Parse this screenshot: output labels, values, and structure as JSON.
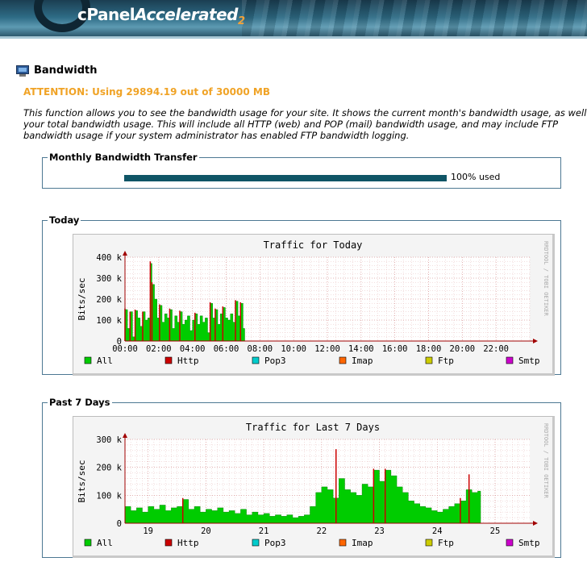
{
  "header": {
    "brand_main": "cPanel",
    "brand_accent": "Accelerated",
    "brand_sub": "2"
  },
  "page": {
    "title": "Bandwidth",
    "attention": "ATTENTION: Using 29894.19 out of 30000 MB",
    "description_lines": [
      "This function allows you to see the bandwidth usage for your site. It shows the current month's bandwidth usage, as well a",
      "your total bandwidth usage. This will include all HTTP (web) and POP (mail) bandwidth usage, and may include FTP",
      "bandwidth usage if your system administrator has enabled FTP bandwidth logging."
    ]
  },
  "monthly": {
    "legend": "Monthly Bandwidth Transfer",
    "percent_used": 100,
    "label": "100% used"
  },
  "legend_items": [
    {
      "label": "All",
      "color": "#00cc00"
    },
    {
      "label": "Http",
      "color": "#cc0000"
    },
    {
      "label": "Pop3",
      "color": "#00cccc"
    },
    {
      "label": "Imap",
      "color": "#ff6600"
    },
    {
      "label": "Ftp",
      "color": "#cccc00"
    },
    {
      "label": "Smtp",
      "color": "#cc00cc"
    }
  ],
  "watermark": "RRDTOOL / TOBI OETIKER",
  "chart_data": [
    {
      "type": "area",
      "section": "Today",
      "title": "Traffic for Today",
      "ylabel": "Bits/sec",
      "ylim": [
        0,
        400000
      ],
      "yticks": [
        0,
        100000,
        200000,
        300000,
        400000
      ],
      "ytick_labels": [
        "0",
        "100 k",
        "200 k",
        "300 k",
        "400 k"
      ],
      "xlim": [
        0,
        24
      ],
      "xticks": [
        0,
        2,
        4,
        6,
        8,
        10,
        12,
        14,
        16,
        18,
        20,
        22
      ],
      "xtick_labels": [
        "00:00",
        "02:00",
        "04:00",
        "06:00",
        "08:00",
        "10:00",
        "12:00",
        "14:00",
        "16:00",
        "18:00",
        "20:00",
        "22:00"
      ],
      "series": [
        {
          "name": "All",
          "values": [
            [
              0.0,
              150000
            ],
            [
              0.15,
              60000
            ],
            [
              0.3,
              140000
            ],
            [
              0.45,
              20000
            ],
            [
              0.6,
              145000
            ],
            [
              0.75,
              110000
            ],
            [
              0.9,
              70000
            ],
            [
              1.05,
              140000
            ],
            [
              1.2,
              100000
            ],
            [
              1.35,
              110000
            ],
            [
              1.5,
              370000
            ],
            [
              1.6,
              270000
            ],
            [
              1.75,
              200000
            ],
            [
              1.9,
              110000
            ],
            [
              2.05,
              170000
            ],
            [
              2.2,
              90000
            ],
            [
              2.35,
              130000
            ],
            [
              2.5,
              110000
            ],
            [
              2.65,
              150000
            ],
            [
              2.8,
              60000
            ],
            [
              2.95,
              120000
            ],
            [
              3.1,
              90000
            ],
            [
              3.25,
              140000
            ],
            [
              3.4,
              80000
            ],
            [
              3.55,
              100000
            ],
            [
              3.7,
              120000
            ],
            [
              3.85,
              50000
            ],
            [
              4.0,
              100000
            ],
            [
              4.15,
              130000
            ],
            [
              4.3,
              80000
            ],
            [
              4.45,
              120000
            ],
            [
              4.6,
              90000
            ],
            [
              4.75,
              110000
            ],
            [
              4.9,
              40000
            ],
            [
              5.05,
              180000
            ],
            [
              5.2,
              110000
            ],
            [
              5.35,
              150000
            ],
            [
              5.5,
              80000
            ],
            [
              5.65,
              130000
            ],
            [
              5.8,
              160000
            ],
            [
              5.95,
              110000
            ],
            [
              6.1,
              100000
            ],
            [
              6.25,
              130000
            ],
            [
              6.4,
              90000
            ],
            [
              6.55,
              190000
            ],
            [
              6.7,
              120000
            ],
            [
              6.85,
              180000
            ],
            [
              7.0,
              60000
            ],
            [
              7.1,
              0
            ]
          ]
        },
        {
          "name": "Http",
          "values": [
            [
              0.0,
              155000
            ],
            [
              0.3,
              140000
            ],
            [
              0.6,
              150000
            ],
            [
              1.05,
              140000
            ],
            [
              1.5,
              380000
            ],
            [
              1.6,
              280000
            ],
            [
              2.05,
              175000
            ],
            [
              2.65,
              155000
            ],
            [
              3.25,
              145000
            ],
            [
              4.15,
              135000
            ],
            [
              5.05,
              185000
            ],
            [
              5.35,
              155000
            ],
            [
              5.8,
              165000
            ],
            [
              6.55,
              195000
            ],
            [
              6.85,
              185000
            ]
          ]
        },
        {
          "name": "Pop3",
          "values": []
        },
        {
          "name": "Imap",
          "values": []
        },
        {
          "name": "Ftp",
          "values": []
        },
        {
          "name": "Smtp",
          "values": []
        }
      ]
    },
    {
      "type": "area",
      "section": "Past 7 Days",
      "title": "Traffic for Last 7 Days",
      "ylabel": "Bits/sec",
      "ylim": [
        0,
        300000
      ],
      "yticks": [
        0,
        100000,
        200000,
        300000
      ],
      "ytick_labels": [
        "0",
        "100 k",
        "200 k",
        "300 k"
      ],
      "xlim": [
        18.6,
        25.6
      ],
      "xticks": [
        19,
        20,
        21,
        22,
        23,
        24,
        25
      ],
      "xtick_labels": [
        "19",
        "20",
        "21",
        "22",
        "23",
        "24",
        "25"
      ],
      "series": [
        {
          "name": "All",
          "values": [
            [
              18.6,
              60000
            ],
            [
              18.7,
              45000
            ],
            [
              18.8,
              55000
            ],
            [
              18.9,
              40000
            ],
            [
              19.0,
              60000
            ],
            [
              19.1,
              50000
            ],
            [
              19.2,
              65000
            ],
            [
              19.3,
              45000
            ],
            [
              19.4,
              55000
            ],
            [
              19.5,
              60000
            ],
            [
              19.6,
              85000
            ],
            [
              19.7,
              50000
            ],
            [
              19.8,
              60000
            ],
            [
              19.9,
              40000
            ],
            [
              20.0,
              50000
            ],
            [
              20.1,
              45000
            ],
            [
              20.2,
              55000
            ],
            [
              20.3,
              40000
            ],
            [
              20.4,
              45000
            ],
            [
              20.5,
              35000
            ],
            [
              20.6,
              50000
            ],
            [
              20.7,
              30000
            ],
            [
              20.8,
              40000
            ],
            [
              20.9,
              30000
            ],
            [
              21.0,
              35000
            ],
            [
              21.1,
              25000
            ],
            [
              21.2,
              30000
            ],
            [
              21.3,
              25000
            ],
            [
              21.4,
              30000
            ],
            [
              21.5,
              20000
            ],
            [
              21.6,
              25000
            ],
            [
              21.7,
              30000
            ],
            [
              21.8,
              60000
            ],
            [
              21.9,
              110000
            ],
            [
              22.0,
              130000
            ],
            [
              22.1,
              120000
            ],
            [
              22.2,
              90000
            ],
            [
              22.3,
              160000
            ],
            [
              22.4,
              120000
            ],
            [
              22.5,
              110000
            ],
            [
              22.6,
              100000
            ],
            [
              22.7,
              140000
            ],
            [
              22.8,
              130000
            ],
            [
              22.9,
              190000
            ],
            [
              23.0,
              150000
            ],
            [
              23.1,
              190000
            ],
            [
              23.2,
              170000
            ],
            [
              23.3,
              130000
            ],
            [
              23.4,
              110000
            ],
            [
              23.5,
              80000
            ],
            [
              23.6,
              70000
            ],
            [
              23.7,
              60000
            ],
            [
              23.8,
              55000
            ],
            [
              23.9,
              45000
            ],
            [
              24.0,
              40000
            ],
            [
              24.1,
              50000
            ],
            [
              24.2,
              60000
            ],
            [
              24.3,
              70000
            ],
            [
              24.4,
              80000
            ],
            [
              24.5,
              120000
            ],
            [
              24.6,
              110000
            ],
            [
              24.7,
              115000
            ],
            [
              24.75,
              0
            ]
          ]
        },
        {
          "name": "Http",
          "values": [
            [
              19.6,
              90000
            ],
            [
              22.25,
              265000
            ],
            [
              22.9,
              195000
            ],
            [
              23.1,
              195000
            ],
            [
              24.55,
              175000
            ],
            [
              24.4,
              90000
            ]
          ]
        },
        {
          "name": "Pop3",
          "values": []
        },
        {
          "name": "Imap",
          "values": []
        },
        {
          "name": "Ftp",
          "values": []
        },
        {
          "name": "Smtp",
          "values": []
        }
      ]
    }
  ]
}
